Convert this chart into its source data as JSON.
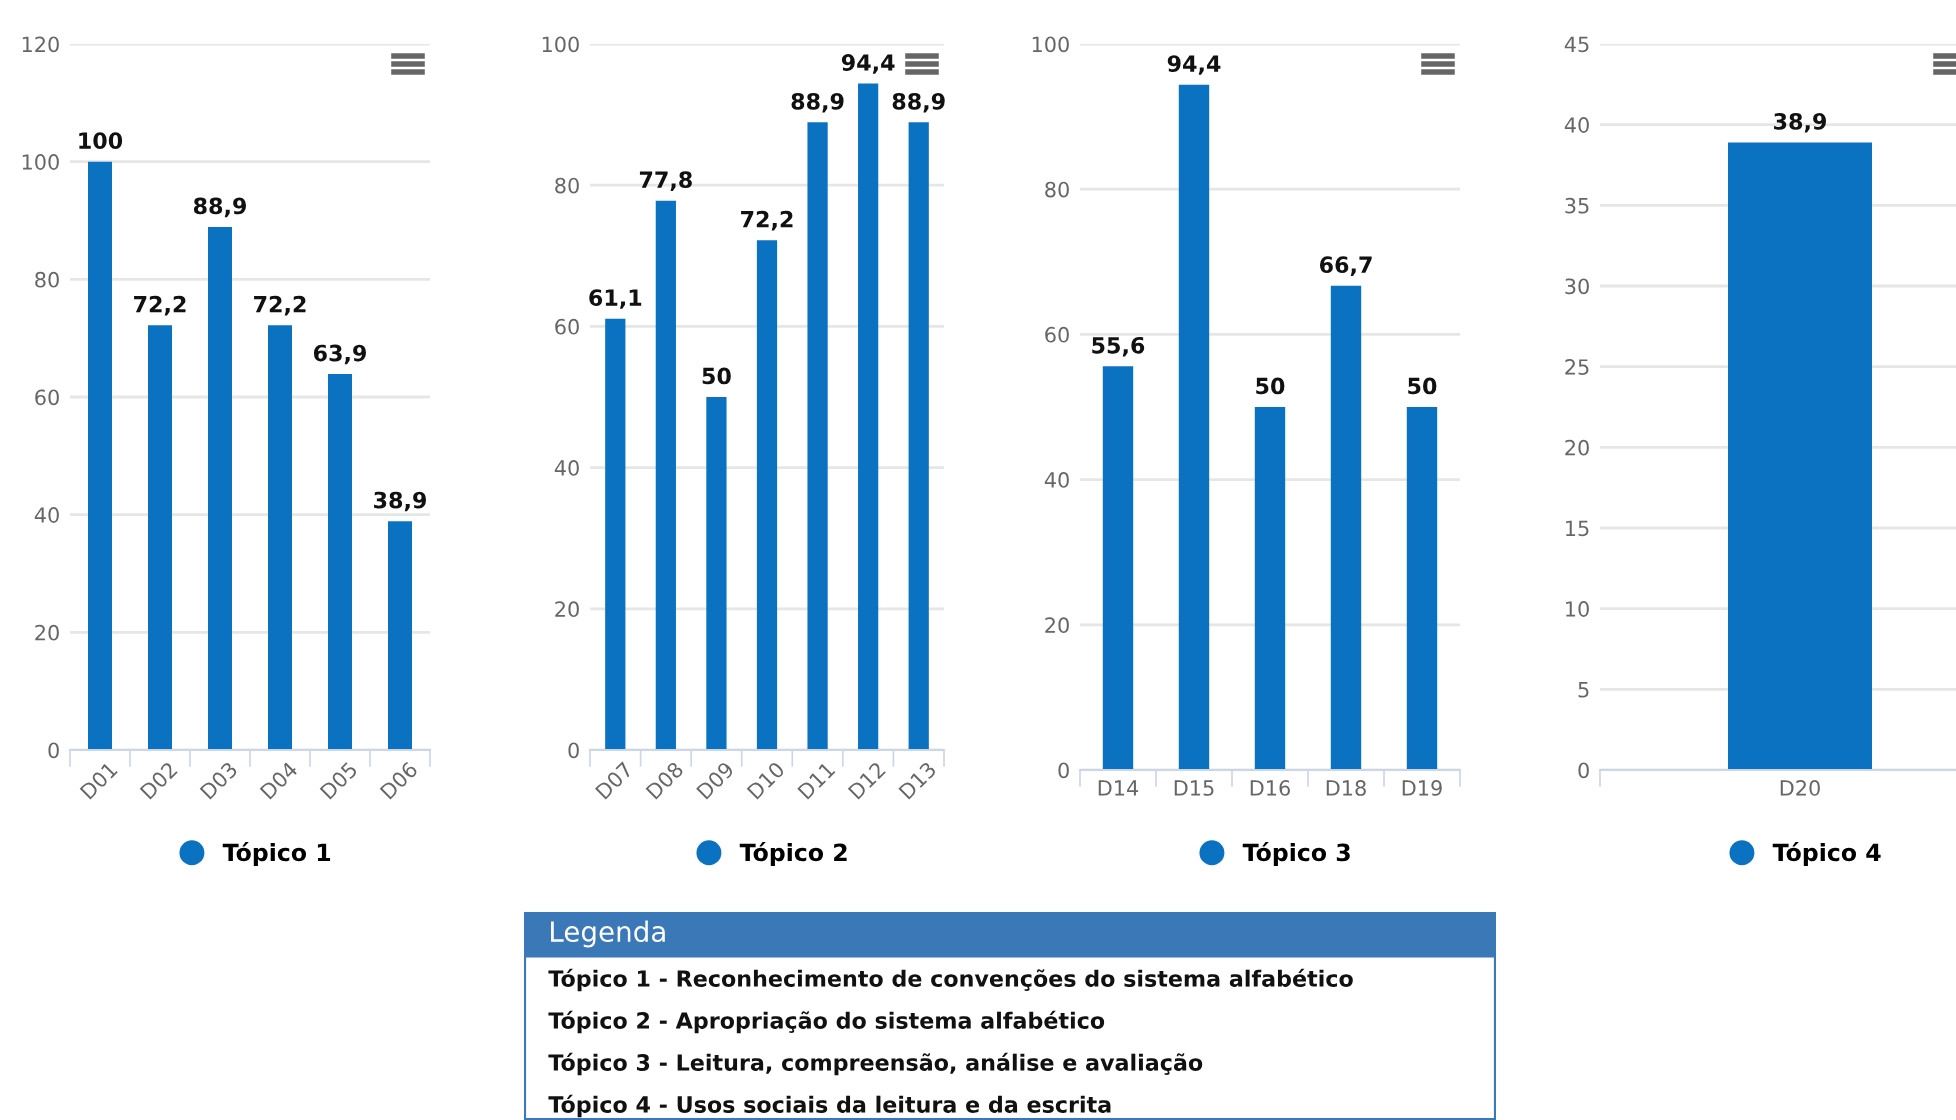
{
  "chart_data": [
    {
      "type": "bar",
      "categories": [
        "D01",
        "D02",
        "D03",
        "D04",
        "D05",
        "D06"
      ],
      "series": [
        {
          "name": "Tópico 1",
          "color": "#0b72c1",
          "values": [
            100,
            72.2,
            88.9,
            72.2,
            63.9,
            38.9
          ],
          "value_labels": [
            "100",
            "72,2",
            "88,9",
            "72,2",
            "63,9",
            "38,9"
          ]
        }
      ],
      "ylim": [
        0,
        120
      ],
      "yticks": [
        0,
        20,
        40,
        60,
        80,
        100,
        120
      ],
      "grid": "y",
      "legend": "bottom"
    },
    {
      "type": "bar",
      "categories": [
        "D07",
        "D08",
        "D09",
        "D10",
        "D11",
        "D12",
        "D13"
      ],
      "series": [
        {
          "name": "Tópico 2",
          "color": "#0b72c1",
          "values": [
            61.1,
            77.8,
            50,
            72.2,
            88.9,
            94.4,
            88.9
          ],
          "value_labels": [
            "61,1",
            "77,8",
            "50",
            "72,2",
            "88,9",
            "94,4",
            "88,9"
          ]
        }
      ],
      "ylim": [
        0,
        100
      ],
      "yticks": [
        0,
        20,
        40,
        60,
        80,
        100
      ],
      "grid": "y",
      "legend": "bottom"
    },
    {
      "type": "bar",
      "categories": [
        "D14",
        "D15",
        "D16",
        "D18",
        "D19"
      ],
      "series": [
        {
          "name": "Tópico 3",
          "color": "#0b72c1",
          "values": [
            55.6,
            94.4,
            50,
            66.7,
            50
          ],
          "value_labels": [
            "55,6",
            "94,4",
            "50",
            "66,7",
            "50"
          ]
        }
      ],
      "ylim": [
        0,
        100
      ],
      "yticks": [
        0,
        20,
        40,
        60,
        80,
        100
      ],
      "grid": "y",
      "legend": "bottom"
    },
    {
      "type": "bar",
      "categories": [
        "D20"
      ],
      "series": [
        {
          "name": "Tópico 4",
          "color": "#0b72c1",
          "values": [
            38.9
          ],
          "value_labels": [
            "38,9"
          ]
        }
      ],
      "ylim": [
        0,
        45
      ],
      "yticks": [
        0,
        5,
        10,
        15,
        20,
        25,
        30,
        35,
        40,
        45
      ],
      "grid": "y",
      "legend": "bottom"
    },
    {
      "type": "other",
      "title": "Legenda",
      "annotations": [
        "Tópico 1 - Reconhecimento de convenções do sistema alfabético",
        "Tópico 2 - Apropriação do sistema alfabético",
        "Tópico 3 - Leitura, compreensão, análise e avaliação",
        "Tópico 4 - Usos sociais da leitura e da escrita"
      ]
    }
  ]
}
